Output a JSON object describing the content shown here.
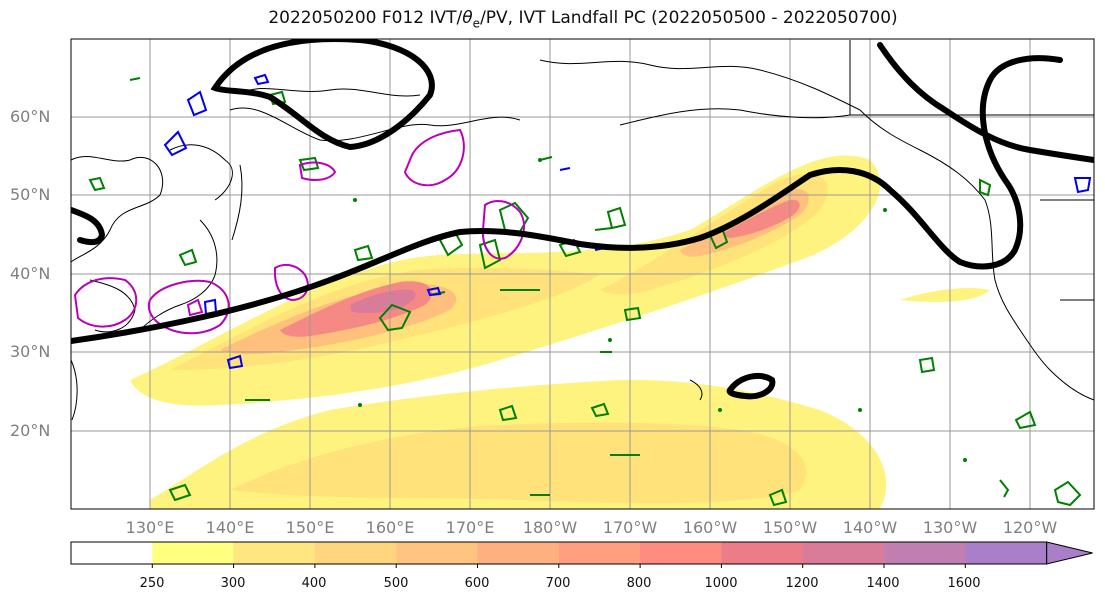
{
  "title": {
    "prefix": "2022050200 F012 IVT/",
    "theta_symbol": "θ",
    "theta_sub": "e",
    "suffix": "/PV, IVT Landfall PC (2022050500 - 2022050700)"
  },
  "lat_labels": [
    "60°N",
    "50°N",
    "40°N",
    "30°N",
    "20°N"
  ],
  "lon_labels": [
    "130°E",
    "140°E",
    "150°E",
    "160°E",
    "170°E",
    "180°W",
    "170°W",
    "160°W",
    "150°W",
    "140°W",
    "130°W",
    "120°W"
  ],
  "colorbar": {
    "ticks": [
      "250",
      "300",
      "400",
      "500",
      "600",
      "700",
      "800",
      "1000",
      "1200",
      "1400",
      "1600"
    ],
    "colors": [
      "#ffffff",
      "#ffff80",
      "#ffe680",
      "#ffd580",
      "#ffc580",
      "#ffb080",
      "#ff9f80",
      "#ff8c80",
      "#ec7d88",
      "#d87c9a",
      "#c07fb0",
      "#a87fc8"
    ]
  },
  "colors": {
    "geopotential_contour": "#000000",
    "green_contour": "#008000",
    "magenta_contour": "#bb00bb",
    "blue_contour": "#0000ee",
    "grid": "#999999",
    "coastline": "#000000",
    "axis_labels": "#7f7f7f"
  }
}
